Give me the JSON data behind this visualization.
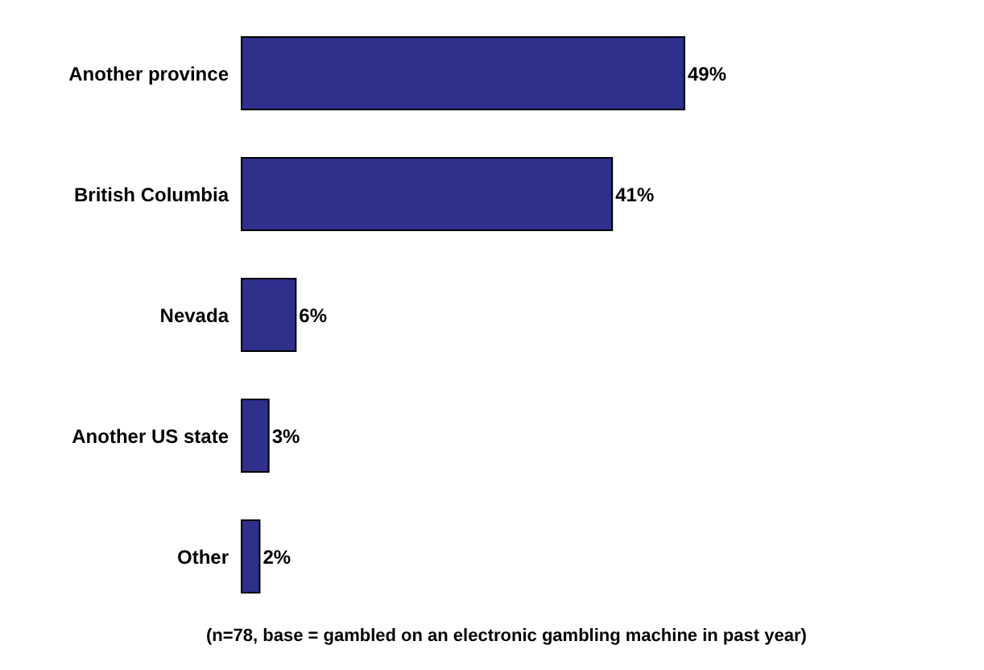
{
  "chart_data": {
    "type": "bar",
    "orientation": "horizontal",
    "categories": [
      "Another province",
      "British Columbia",
      "Nevada",
      "Another US state",
      "Other"
    ],
    "values": [
      49,
      41,
      6,
      3,
      2
    ],
    "value_labels": [
      "49%",
      "41%",
      "6%",
      "3%",
      "2%"
    ],
    "color": "#2f2f8c",
    "legend": false,
    "grid": false,
    "annotations": [
      "(n=78, base = gambled on an electronic gambling machine in past year)"
    ]
  }
}
